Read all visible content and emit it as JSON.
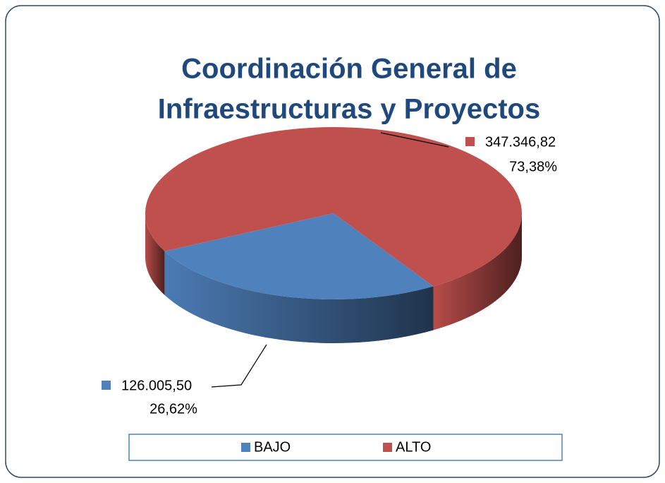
{
  "chart_data": {
    "type": "pie",
    "title": [
      "Coordinación General de",
      "Infraestructuras y Proyectos"
    ],
    "categories": [
      "BAJO",
      "ALTO"
    ],
    "values": [
      126005.5,
      347346.82
    ],
    "value_labels": [
      "126.005,50",
      "347.346,82"
    ],
    "percentages": [
      26.62,
      73.38
    ],
    "percentage_labels": [
      "26,62%",
      "73,38%"
    ],
    "colors": [
      "#4f81bd",
      "#c0504d"
    ],
    "legend": "bottom"
  }
}
